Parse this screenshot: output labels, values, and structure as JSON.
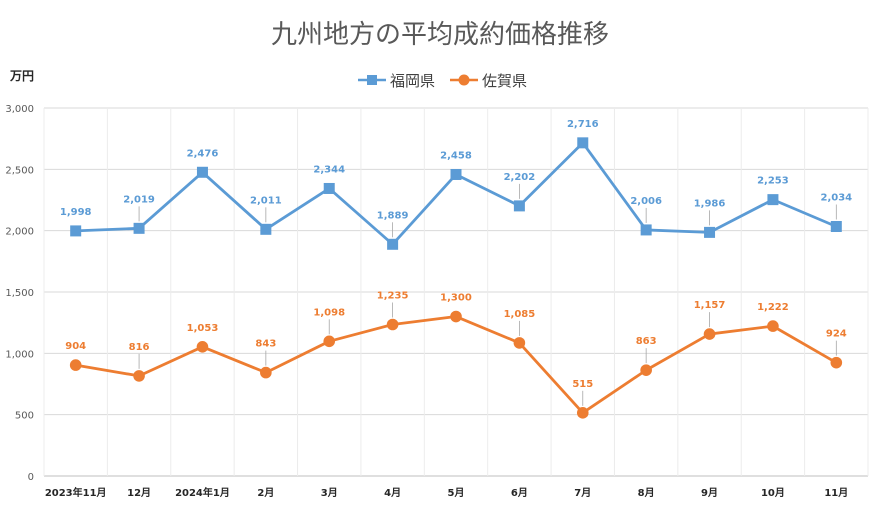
{
  "chart_data": {
    "type": "line",
    "title": "九州地方の平均成約価格推移",
    "unit_label": "万円",
    "xlabel": "",
    "ylabel": "",
    "ylim": [
      0,
      3000
    ],
    "yticks": [
      "0",
      "500",
      "1,000",
      "1,500",
      "2,000",
      "2,500",
      "3,000"
    ],
    "ytick_values": [
      0,
      500,
      1000,
      1500,
      2000,
      2500,
      3000
    ],
    "categories": [
      "2023年11月",
      "12月",
      "2024年1月",
      "2月",
      "3月",
      "4月",
      "5月",
      "6月",
      "7月",
      "8月",
      "9月",
      "10月",
      "11月"
    ],
    "legend_position": "top-center",
    "grid": true,
    "series": [
      {
        "name": "福岡県",
        "color": "#5B9BD5",
        "marker": "square",
        "values": [
          1998,
          2019,
          2476,
          2011,
          2344,
          1889,
          2458,
          2202,
          2716,
          2006,
          1986,
          2253,
          2034
        ],
        "labels": [
          "1,998",
          "2,019",
          "2,476",
          "2,011",
          "2,344",
          "1,889",
          "2,458",
          "2,202",
          "2,716",
          "2,006",
          "1,986",
          "2,253",
          "2,034"
        ]
      },
      {
        "name": "佐賀県",
        "color": "#ED7D31",
        "marker": "circle",
        "values": [
          904,
          816,
          1053,
          843,
          1098,
          1235,
          1300,
          1085,
          515,
          863,
          1157,
          1222,
          924
        ],
        "labels": [
          "904",
          "816",
          "1,053",
          "843",
          "1,098",
          "1,235",
          "1,300",
          "1,085",
          "515",
          "863",
          "1,157",
          "1,222",
          "924"
        ]
      }
    ]
  }
}
